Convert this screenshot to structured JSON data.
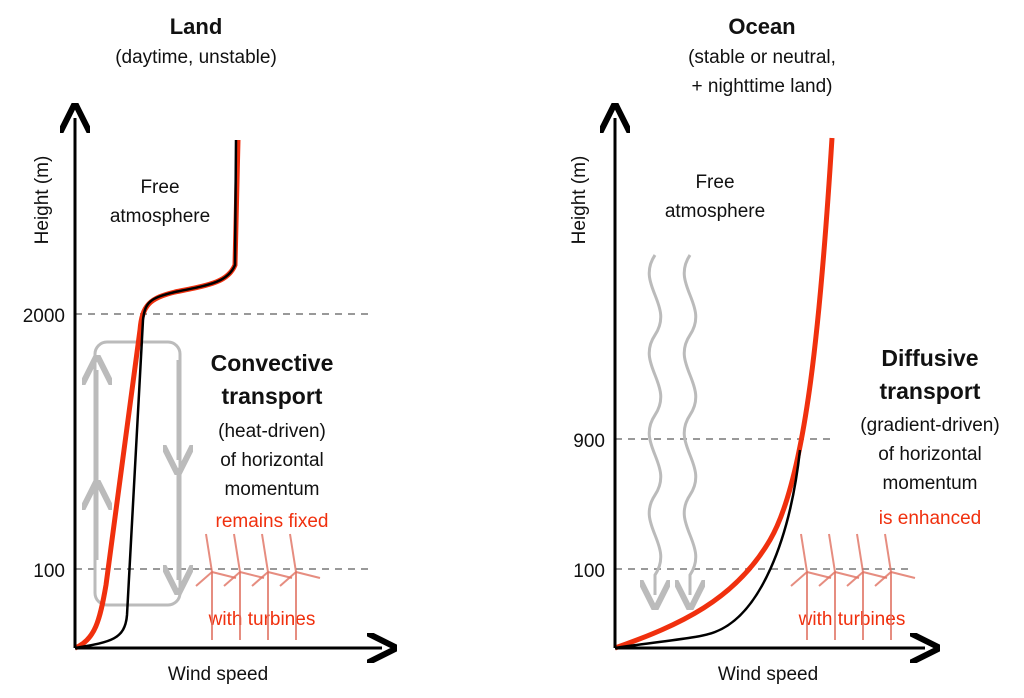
{
  "panels": [
    {
      "title": "Land",
      "subtitle": [
        "(daytime, unstable)"
      ],
      "y_label": "Height (m)",
      "x_label": "Wind speed",
      "ticks": [
        "2000",
        "100"
      ],
      "free_atmosphere": [
        "Free",
        "atmosphere"
      ],
      "transport": [
        "Convective",
        "transport"
      ],
      "detail": [
        "(heat-driven)",
        "of horizontal",
        "momentum"
      ],
      "effect": "remains fixed",
      "turbines": "with turbines"
    },
    {
      "title": "Ocean",
      "subtitle": [
        "(stable or neutral,",
        "+ nighttime land)"
      ],
      "y_label": "Height (m)",
      "x_label": "Wind speed",
      "ticks": [
        "900",
        "100"
      ],
      "free_atmosphere": [
        "Free",
        "atmosphere"
      ],
      "transport": [
        "Diffusive",
        "transport"
      ],
      "detail": [
        "(gradient-driven)",
        "of horizontal",
        "momentum"
      ],
      "effect": "is enhanced",
      "turbines": "with turbines"
    }
  ]
}
